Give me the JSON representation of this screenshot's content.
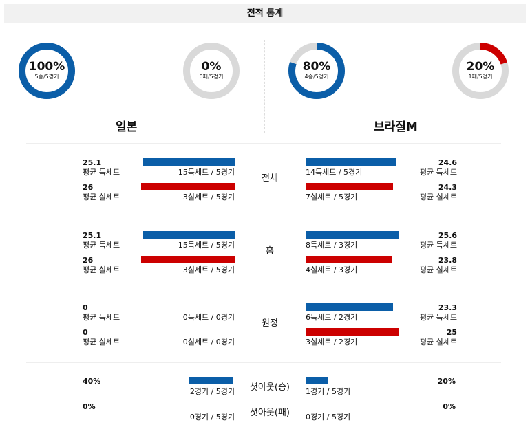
{
  "header": {
    "title": "전적 통계"
  },
  "colors": {
    "win": "#0b5ea8",
    "loss": "#cc0000",
    "ring_bg": "#d9d9d9"
  },
  "donuts": [
    {
      "pct": "100%",
      "sub": "5승/5경기",
      "value": 1.0,
      "color": "#0b5ea8"
    },
    {
      "pct": "0%",
      "sub": "0패/5경기",
      "value": 0.0,
      "color": "#cc0000"
    },
    {
      "pct": "80%",
      "sub": "4승/5경기",
      "value": 0.8,
      "color": "#0b5ea8"
    },
    {
      "pct": "20%",
      "sub": "1패/5경기",
      "value": 0.2,
      "color": "#cc0000"
    }
  ],
  "teams": {
    "left": "일본",
    "right": "브라질M"
  },
  "sections": [
    {
      "name": "전체",
      "left": {
        "win_val": "25.1",
        "win_label": "평균 득세트",
        "win_caption": "15득세트 / 5경기",
        "win_frac": 0.978,
        "loss_val": "26",
        "loss_label": "평균 실세트",
        "loss_caption": "3실세트 / 5경기",
        "loss_frac": 1.0
      },
      "right": {
        "win_val": "24.6",
        "win_label": "평균 득세트",
        "win_caption": "14득세트 / 5경기",
        "win_frac": 0.96,
        "loss_val": "24.3",
        "loss_label": "평균 실세트",
        "loss_caption": "7실세트 / 5경기",
        "loss_frac": 0.935
      }
    },
    {
      "name": "홈",
      "left": {
        "win_val": "25.1",
        "win_label": "평균 득세트",
        "win_caption": "15득세트 / 5경기",
        "win_frac": 0.98,
        "loss_val": "26",
        "loss_label": "평균 실세트",
        "loss_caption": "3실세트 / 5경기",
        "loss_frac": 1.0
      },
      "right": {
        "win_val": "25.6",
        "win_label": "평균 득세트",
        "win_caption": "8득세트 / 3경기",
        "win_frac": 1.0,
        "loss_val": "23.8",
        "loss_label": "평균 실세트",
        "loss_caption": "4실세트 / 3경기",
        "loss_frac": 0.93
      }
    },
    {
      "name": "원정",
      "left": {
        "win_val": "0",
        "win_label": "평균 득세트",
        "win_caption": "0득세트 / 0경기",
        "win_frac": 0.0,
        "loss_val": "0",
        "loss_label": "평균 실세트",
        "loss_caption": "0실세트 / 0경기",
        "loss_frac": 0.0
      },
      "right": {
        "win_val": "23.3",
        "win_label": "평균 득세트",
        "win_caption": "6득세트 / 2경기",
        "win_frac": 0.932,
        "loss_val": "25",
        "loss_label": "평균 실세트",
        "loss_caption": "3실세트 / 2경기",
        "loss_frac": 1.0
      }
    }
  ],
  "shutout": {
    "win": {
      "name": "셧아웃(승)",
      "left_val": "40%",
      "left_caption": "2경기 / 5경기",
      "left_frac": 0.4,
      "right_val": "20%",
      "right_caption": "1경기 / 5경기",
      "right_frac": 0.2
    },
    "loss": {
      "name": "셧아웃(패)",
      "left_val": "0%",
      "left_caption": "0경기 / 5경기",
      "left_frac": 0.0,
      "right_val": "0%",
      "right_caption": "0경기 / 5경기",
      "right_frac": 0.0
    }
  }
}
